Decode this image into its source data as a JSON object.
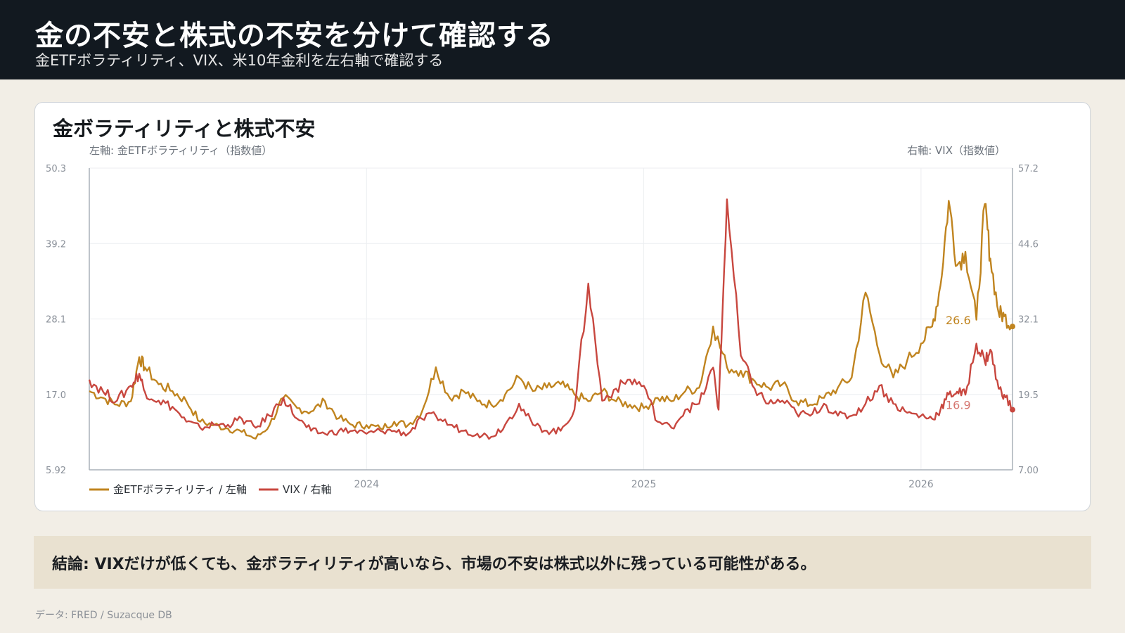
{
  "header": {
    "title": "金の不安と株式の不安を分けて確認する",
    "subtitle": "金ETFボラティリティ、VIX、米10年金利を左右軸で確認する"
  },
  "chart_card": {
    "title": "金ボラティリティと株式不安"
  },
  "chart_data": {
    "type": "line",
    "left_axis_label": "左軸: 金ETFボラティリティ（指数値）",
    "right_axis_label": "右軸: VIX（指数値）",
    "left_ticks": [
      "50.3",
      "39.2",
      "28.1",
      "17.0",
      "5.92"
    ],
    "right_ticks": [
      "57.2",
      "44.6",
      "32.1",
      "19.5",
      "7.00"
    ],
    "ylim_left": [
      5.92,
      50.3
    ],
    "ylim_right": [
      7.0,
      57.2
    ],
    "xlim": [
      2023.0,
      2026.33
    ],
    "x_ticks": [
      {
        "value": 2024,
        "label": "2024"
      },
      {
        "value": 2025,
        "label": "2025"
      },
      {
        "value": 2026,
        "label": "2026"
      }
    ],
    "grid": true,
    "legend_position": "bottom-left",
    "end_labels": {
      "gold": "26.6",
      "vix": "16.9"
    },
    "series": [
      {
        "name": "金ETFボラティリティ / 左軸",
        "axis": "left",
        "color": "#c0841f",
        "x": [
          2023.0,
          2023.05,
          2023.1,
          2023.15,
          2023.18,
          2023.2,
          2023.25,
          2023.3,
          2023.35,
          2023.4,
          2023.45,
          2023.5,
          2023.55,
          2023.6,
          2023.65,
          2023.7,
          2023.75,
          2023.8,
          2023.85,
          2023.9,
          2023.95,
          2024.0,
          2024.05,
          2024.1,
          2024.15,
          2024.2,
          2024.25,
          2024.3,
          2024.35,
          2024.4,
          2024.45,
          2024.5,
          2024.55,
          2024.6,
          2024.65,
          2024.7,
          2024.75,
          2024.8,
          2024.85,
          2024.9,
          2024.95,
          2025.0,
          2025.05,
          2025.1,
          2025.15,
          2025.2,
          2025.25,
          2025.3,
          2025.35,
          2025.4,
          2025.45,
          2025.5,
          2025.55,
          2025.6,
          2025.65,
          2025.7,
          2025.75,
          2025.8,
          2025.85,
          2025.9,
          2025.95,
          2026.0,
          2026.04,
          2026.07,
          2026.1,
          2026.13,
          2026.16,
          2026.2,
          2026.23,
          2026.25,
          2026.28,
          2026.3,
          2026.33
        ],
        "values": [
          17.5,
          16.5,
          15.5,
          16.0,
          22.5,
          21.0,
          18.5,
          17.5,
          16.0,
          13.0,
          12.5,
          12.0,
          11.5,
          10.5,
          12.5,
          16.5,
          15.0,
          14.5,
          16.0,
          13.5,
          12.5,
          12.5,
          12.0,
          13.0,
          12.5,
          14.5,
          21.0,
          16.5,
          17.5,
          16.0,
          15.5,
          17.0,
          19.5,
          17.5,
          18.0,
          18.5,
          17.0,
          16.0,
          17.5,
          16.0,
          15.5,
          15.0,
          16.5,
          16.0,
          17.5,
          18.0,
          27.0,
          21.0,
          20.5,
          19.0,
          18.0,
          18.5,
          16.0,
          15.5,
          16.5,
          18.0,
          19.5,
          32.0,
          23.0,
          19.5,
          22.0,
          24.5,
          27.0,
          33.0,
          45.5,
          36.0,
          38.0,
          28.0,
          45.0,
          37.0,
          29.0,
          28.5,
          27.0
        ]
      },
      {
        "name": "VIX / 右軸",
        "axis": "right",
        "color": "#c8473f",
        "x": [
          2023.0,
          2023.05,
          2023.1,
          2023.15,
          2023.18,
          2023.2,
          2023.25,
          2023.3,
          2023.35,
          2023.4,
          2023.45,
          2023.5,
          2023.55,
          2023.6,
          2023.65,
          2023.7,
          2023.75,
          2023.8,
          2023.85,
          2023.9,
          2023.95,
          2024.0,
          2024.05,
          2024.1,
          2024.15,
          2024.2,
          2024.25,
          2024.3,
          2024.35,
          2024.4,
          2024.45,
          2024.5,
          2024.55,
          2024.6,
          2024.65,
          2024.7,
          2024.75,
          2024.8,
          2024.85,
          2024.9,
          2024.95,
          2025.0,
          2025.05,
          2025.1,
          2025.15,
          2025.2,
          2025.25,
          2025.27,
          2025.3,
          2025.35,
          2025.4,
          2025.45,
          2025.5,
          2025.55,
          2025.6,
          2025.65,
          2025.7,
          2025.75,
          2025.8,
          2025.85,
          2025.9,
          2025.95,
          2026.0,
          2026.04,
          2026.07,
          2026.1,
          2026.13,
          2026.16,
          2026.2,
          2026.23,
          2026.25,
          2026.28,
          2026.3,
          2026.33
        ],
        "values": [
          22.0,
          20.0,
          18.5,
          21.0,
          23.0,
          20.0,
          18.5,
          17.5,
          15.0,
          14.0,
          14.5,
          14.5,
          15.5,
          14.0,
          16.0,
          19.0,
          15.5,
          13.5,
          13.0,
          13.5,
          13.5,
          13.0,
          13.5,
          13.5,
          13.0,
          15.5,
          16.0,
          14.5,
          13.5,
          13.0,
          12.5,
          14.5,
          18.0,
          14.5,
          13.5,
          13.5,
          17.0,
          38.0,
          18.5,
          20.5,
          22.0,
          21.0,
          15.0,
          14.0,
          17.0,
          18.0,
          24.0,
          17.0,
          52.0,
          26.0,
          20.5,
          18.0,
          18.5,
          16.5,
          16.0,
          18.0,
          16.0,
          16.0,
          18.0,
          21.0,
          18.0,
          16.5,
          16.0,
          15.5,
          17.0,
          19.5,
          20.0,
          19.5,
          28.0,
          25.0,
          27.0,
          20.5,
          19.5,
          17.0
        ]
      }
    ]
  },
  "conclusion": {
    "text": "結論: VIXだけが低くても、金ボラティリティが高いなら、市場の不安は株式以外に残っている可能性がある。"
  },
  "footer": {
    "source": "データ: FRED / Suzacque DB"
  }
}
